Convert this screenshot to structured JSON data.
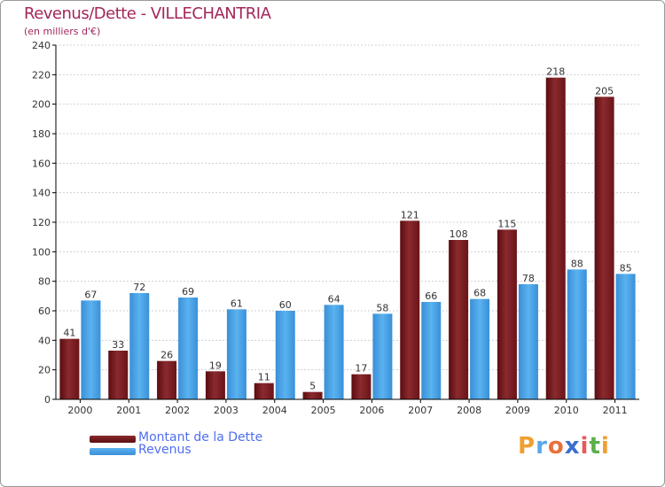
{
  "header": {
    "title": "Revenus/Dette - VILLECHANTRIA",
    "subtitle": "(en milliers d'€)"
  },
  "legend": [
    {
      "label": "Montant de la Dette",
      "color": "#7a1a1e"
    },
    {
      "label": "Revenus",
      "color": "#4aa3e6"
    }
  ],
  "logo": {
    "letters": [
      "P",
      "r",
      "o",
      "x",
      "i",
      "t",
      "i"
    ],
    "colors": [
      "#f0a030",
      "#5aa8e8",
      "#e8703a",
      "#3b6fd0",
      "#e85a5a",
      "#5ab04a",
      "#f0a030"
    ]
  },
  "colors": {
    "dette": "#7a1a1e",
    "revenus": "#4aa3e6",
    "grid": "#d0d0d0",
    "axis": "#000000"
  },
  "chart_data": {
    "type": "bar",
    "title": "Revenus/Dette - VILLECHANTRIA",
    "ylabel": "(en milliers d'€)",
    "xlabel": "",
    "ylim": [
      0,
      240
    ],
    "yticks": [
      0,
      20,
      40,
      60,
      80,
      100,
      120,
      140,
      160,
      180,
      200,
      220,
      240
    ],
    "categories": [
      "2000",
      "2001",
      "2002",
      "2003",
      "2004",
      "2005",
      "2006",
      "2007",
      "2008",
      "2009",
      "2010",
      "2011"
    ],
    "series": [
      {
        "name": "Montant de la Dette",
        "values": [
          41,
          33,
          26,
          19,
          11,
          5,
          17,
          121,
          108,
          115,
          218,
          205
        ]
      },
      {
        "name": "Revenus",
        "values": [
          67,
          72,
          69,
          61,
          60,
          64,
          58,
          66,
          68,
          78,
          88,
          85
        ]
      }
    ],
    "grid": true,
    "legend_position": "bottom-left"
  }
}
